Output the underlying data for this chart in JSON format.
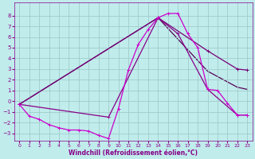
{
  "xlabel": "Windchill (Refroidissement éolien,°C)",
  "bg_color": "#c0ecec",
  "grid_color": "#a0cccc",
  "xlim": [
    -0.5,
    23.5
  ],
  "ylim": [
    -3.7,
    9.2
  ],
  "yticks": [
    -3,
    -2,
    -1,
    0,
    1,
    2,
    3,
    4,
    5,
    6,
    7,
    8
  ],
  "xticks": [
    0,
    1,
    2,
    3,
    4,
    5,
    6,
    7,
    8,
    9,
    10,
    11,
    12,
    13,
    14,
    15,
    16,
    17,
    18,
    19,
    20,
    21,
    22,
    23
  ],
  "line1_color": "#cc00cc",
  "line1_x": [
    0,
    1,
    2,
    3,
    4,
    5,
    6,
    7,
    8,
    9,
    10,
    11,
    12,
    13,
    14,
    15,
    16,
    17,
    18,
    19,
    20,
    21,
    22,
    23
  ],
  "line1_y": [
    -0.3,
    -1.4,
    -1.7,
    -2.2,
    -2.5,
    -2.7,
    -2.7,
    -2.8,
    -3.2,
    -3.5,
    -0.7,
    2.9,
    5.3,
    6.7,
    7.8,
    8.2,
    8.2,
    6.3,
    5.0,
    1.1,
    1.0,
    -0.2,
    -1.3,
    -1.3
  ],
  "line2_color": "#880088",
  "line2_x": [
    0,
    9,
    14,
    16,
    19,
    22,
    23
  ],
  "line2_y": [
    -0.3,
    -1.5,
    7.8,
    6.3,
    1.1,
    -1.3,
    -1.3
  ],
  "line3_color": "#770077",
  "line3_x": [
    0,
    14,
    19,
    22,
    23
  ],
  "line3_y": [
    -0.3,
    7.8,
    4.7,
    3.0,
    2.9
  ],
  "line4_color": "#550055",
  "line4_x": [
    0,
    14,
    19,
    22,
    23
  ],
  "line4_y": [
    -0.3,
    7.8,
    2.8,
    1.3,
    1.1
  ],
  "tick_color": "#880088",
  "label_color": "#880088",
  "xlabel_fontsize": 5.5,
  "tick_fontsize_x": 4.5,
  "tick_fontsize_y": 5.0
}
